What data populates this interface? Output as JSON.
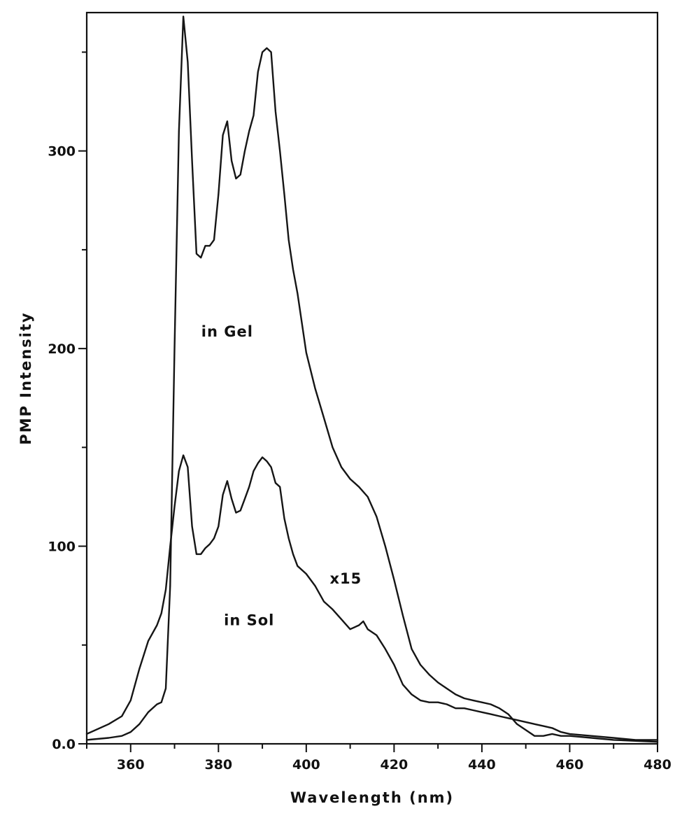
{
  "chart_data": {
    "type": "line",
    "title": "",
    "xlabel": "Wavelength (nm)",
    "ylabel": "PMP Intensity",
    "xlim": [
      350,
      480
    ],
    "ylim": [
      0,
      370
    ],
    "x_ticks": [
      360,
      380,
      400,
      420,
      440,
      460,
      480
    ],
    "y_tick_labels": [
      {
        "value": 0,
        "label": "0.0"
      },
      {
        "value": 100,
        "label": "100"
      },
      {
        "value": 200,
        "label": "200"
      },
      {
        "value": 300,
        "label": "300"
      }
    ],
    "y_minor_ticks": [
      50,
      150,
      250,
      350
    ],
    "grid": false,
    "annotations": [
      {
        "text": "in Gel",
        "x": 382,
        "y": 206
      },
      {
        "text": "in Sol",
        "x": 387,
        "y": 60
      },
      {
        "text": "x15",
        "x": 409,
        "y": 81
      }
    ],
    "series": [
      {
        "x": [
          350,
          355,
          358,
          360,
          362,
          364,
          366,
          367,
          368,
          369,
          370,
          371,
          372,
          373,
          374,
          375,
          376,
          377,
          378,
          379,
          380,
          381,
          382,
          383,
          384,
          385,
          386,
          387,
          388,
          389,
          390,
          391,
          392,
          393,
          394,
          395,
          396,
          397,
          398,
          400,
          402,
          404,
          406,
          408,
          410,
          412,
          414,
          416,
          418,
          420,
          422,
          424,
          426,
          428,
          430,
          432,
          434,
          436,
          438,
          440,
          442,
          444,
          446,
          448,
          450,
          452,
          454,
          456,
          458,
          460,
          465,
          470,
          475,
          480
        ],
        "y": [
          2,
          3,
          4,
          6,
          10,
          16,
          20,
          21,
          28,
          80,
          200,
          310,
          368,
          345,
          295,
          248,
          246,
          252,
          252,
          255,
          278,
          308,
          315,
          295,
          286,
          288,
          300,
          310,
          318,
          340,
          350,
          352,
          350,
          320,
          300,
          278,
          255,
          240,
          228,
          198,
          180,
          165,
          150,
          140,
          134,
          130,
          125,
          115,
          100,
          83,
          65,
          48,
          40,
          35,
          31,
          28,
          25,
          23,
          22,
          21,
          20,
          18,
          15,
          10,
          7,
          4,
          4,
          5,
          4,
          4,
          3,
          2,
          1.5,
          1
        ]
      },
      {
        "x": [
          350,
          355,
          358,
          360,
          362,
          364,
          366,
          367,
          368,
          369,
          370,
          371,
          372,
          373,
          374,
          375,
          376,
          377,
          378,
          379,
          380,
          381,
          382,
          383,
          384,
          385,
          386,
          387,
          388,
          389,
          390,
          391,
          392,
          393,
          394,
          395,
          396,
          397,
          398,
          400,
          402,
          404,
          406,
          408,
          410,
          412,
          413,
          414,
          416,
          418,
          420,
          422,
          424,
          426,
          428,
          430,
          432,
          434,
          436,
          438,
          440,
          442,
          444,
          446,
          448,
          450,
          452,
          454,
          456,
          458,
          460,
          465,
          470,
          475,
          480
        ],
        "y": [
          5,
          10,
          14,
          22,
          38,
          52,
          60,
          66,
          78,
          100,
          120,
          138,
          146,
          140,
          110,
          96,
          96,
          99,
          101,
          104,
          110,
          126,
          133,
          124,
          117,
          118,
          124,
          130,
          138,
          142,
          145,
          143,
          140,
          132,
          130,
          114,
          104,
          96,
          90,
          86,
          80,
          72,
          68,
          63,
          58,
          60,
          62,
          58,
          55,
          48,
          40,
          30,
          25,
          22,
          21,
          21,
          20,
          18,
          18,
          17,
          16,
          15,
          14,
          13,
          12,
          11,
          10,
          9,
          8,
          6,
          5,
          4,
          3,
          2,
          2
        ]
      }
    ]
  }
}
